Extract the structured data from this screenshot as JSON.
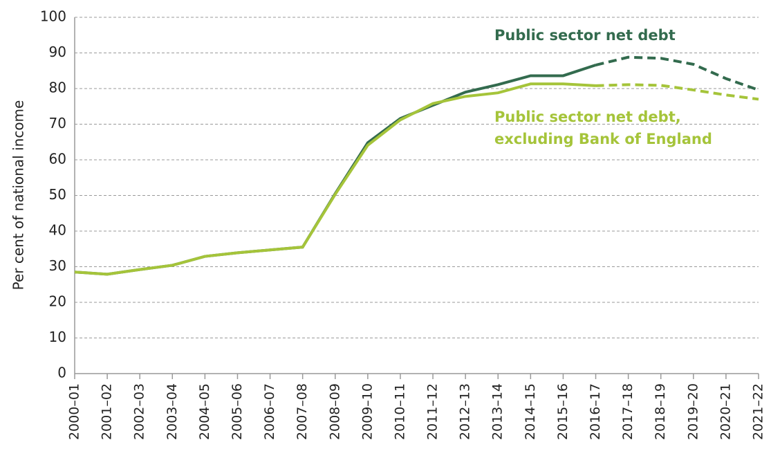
{
  "chart_data": {
    "type": "line",
    "y_label": "Per cent of national income",
    "categories": [
      "2000–01",
      "2001–02",
      "2002–03",
      "2003–04",
      "2004–05",
      "2005–06",
      "2006–07",
      "2007–08",
      "2008–09",
      "2009–10",
      "2010–11",
      "2011–12",
      "2012–13",
      "2013–14",
      "2014–15",
      "2015–16",
      "2016–17",
      "2017–18",
      "2018–19",
      "2019–20",
      "2020–21",
      "2021–22"
    ],
    "series": [
      {
        "name": "Public sector net debt",
        "color": "#336b4e",
        "values": [
          28.5,
          27.9,
          29.2,
          30.4,
          32.9,
          33.9,
          34.7,
          35.5,
          50.5,
          64.8,
          71.6,
          75.3,
          79.0,
          81.1,
          83.6,
          83.6,
          86.6,
          88.8,
          88.5,
          86.8,
          82.8,
          79.6
        ]
      },
      {
        "name": "Public sector net debt, excluding Bank of England",
        "color": "#a5c43a",
        "values": [
          28.5,
          27.9,
          29.2,
          30.4,
          32.9,
          33.9,
          34.7,
          35.5,
          50.3,
          64.1,
          71.2,
          75.8,
          77.8,
          78.8,
          81.3,
          81.3,
          80.8,
          81.1,
          80.9,
          79.6,
          78.2,
          77.0
        ]
      }
    ],
    "annotations": [
      [
        "Public sector net debt"
      ],
      [
        "Public sector net debt,",
        "excluding Bank of England"
      ]
    ],
    "forecast_start": 16,
    "ylim": [
      0,
      100
    ],
    "yticks": [
      0,
      10,
      20,
      30,
      40,
      50,
      60,
      70,
      80,
      90,
      100
    ],
    "grid": true
  }
}
